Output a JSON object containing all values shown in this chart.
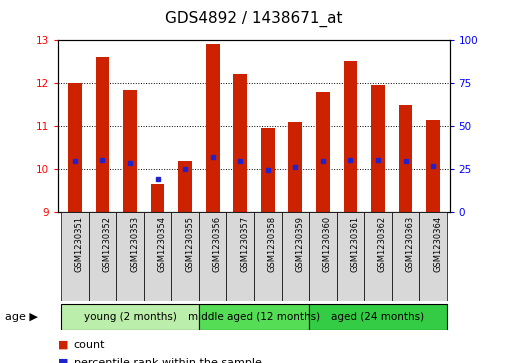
{
  "title": "GDS4892 / 1438671_at",
  "samples": [
    "GSM1230351",
    "GSM1230352",
    "GSM1230353",
    "GSM1230354",
    "GSM1230355",
    "GSM1230356",
    "GSM1230357",
    "GSM1230358",
    "GSM1230359",
    "GSM1230360",
    "GSM1230361",
    "GSM1230362",
    "GSM1230363",
    "GSM1230364"
  ],
  "count_values": [
    12.0,
    12.6,
    11.85,
    9.65,
    10.2,
    12.9,
    12.2,
    10.95,
    11.1,
    11.8,
    12.5,
    11.95,
    11.5,
    11.15
  ],
  "percentile_values": [
    10.18,
    10.22,
    10.15,
    9.78,
    10.0,
    10.28,
    10.18,
    9.98,
    10.05,
    10.18,
    10.22,
    10.22,
    10.18,
    10.08
  ],
  "y_min": 9,
  "y_max": 13,
  "y_ticks": [
    9,
    10,
    11,
    12,
    13
  ],
  "y_right_ticks": [
    0,
    25,
    50,
    75,
    100
  ],
  "bar_color": "#CC2200",
  "dot_color": "#2222CC",
  "bar_width": 0.5,
  "groups": [
    {
      "label": "young (2 months)",
      "start": 0,
      "end": 4
    },
    {
      "label": "middle aged (12 months)",
      "start": 5,
      "end": 8
    },
    {
      "label": "aged (24 months)",
      "start": 9,
      "end": 13
    }
  ],
  "group_colors": [
    "#BBEEAA",
    "#55DD55",
    "#33CC44"
  ],
  "age_label": "age",
  "legend_count": "count",
  "legend_percentile": "percentile rank within the sample",
  "title_fontsize": 11,
  "tick_fontsize": 7.5,
  "sample_fontsize": 6.0,
  "group_fontsize": 7.5,
  "legend_fontsize": 8
}
